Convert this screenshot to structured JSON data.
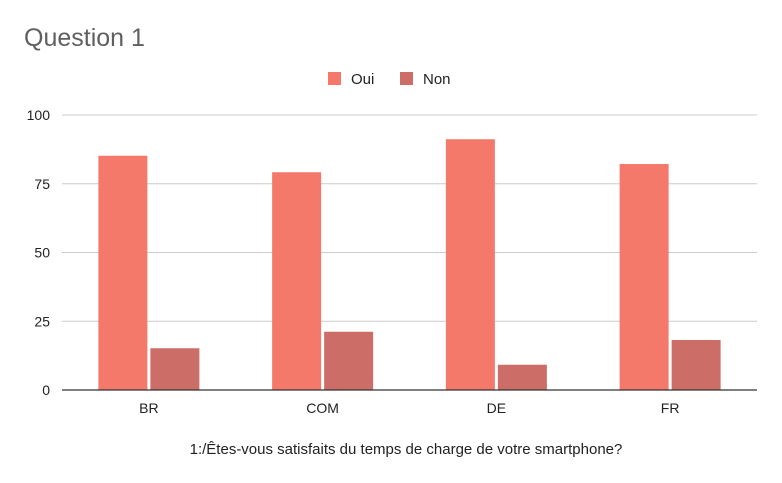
{
  "chart_data": {
    "type": "bar",
    "title": "Question 1",
    "xlabel": "1:/Êtes-vous satisfaits du temps de charge de votre smartphone?",
    "ylabel": "",
    "categories": [
      "BR",
      "COM",
      "DE",
      "FR"
    ],
    "series": [
      {
        "name": "Oui",
        "values": [
          85,
          79,
          91,
          82
        ],
        "color": "#f4796b"
      },
      {
        "name": "Non",
        "values": [
          15,
          21,
          9,
          18
        ],
        "color": "#cc6e67"
      }
    ],
    "ylim": [
      0,
      100
    ],
    "yticks": [
      "0",
      "25",
      "50",
      "75",
      "100"
    ],
    "grid": true,
    "legend_position": "top-center"
  }
}
